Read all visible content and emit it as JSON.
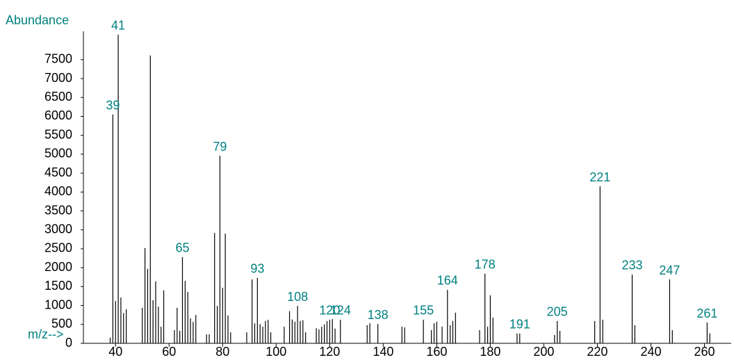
{
  "chart_data": {
    "type": "bar",
    "y_label": "Abundance",
    "x_label": "m/z-->",
    "x": [
      38,
      39,
      40,
      41,
      42,
      43,
      44,
      50,
      51,
      52,
      53,
      54,
      55,
      56,
      57,
      58,
      62,
      63,
      64,
      65,
      66,
      67,
      68,
      69,
      70,
      74,
      75,
      77,
      78,
      79,
      80,
      81,
      82,
      83,
      89,
      91,
      92,
      93,
      94,
      95,
      96,
      97,
      98,
      103,
      105,
      106,
      107,
      108,
      109,
      110,
      111,
      115,
      116,
      117,
      118,
      119,
      120,
      121,
      122,
      124,
      134,
      135,
      138,
      147,
      148,
      155,
      158,
      159,
      160,
      162,
      164,
      165,
      166,
      167,
      176,
      178,
      179,
      180,
      181,
      190,
      191,
      204,
      205,
      206,
      219,
      221,
      222,
      233,
      234,
      247,
      248,
      261,
      262
    ],
    "values": [
      150,
      6050,
      1120,
      8160,
      1210,
      800,
      900,
      940,
      2520,
      1970,
      7610,
      1140,
      1640,
      970,
      440,
      1400,
      350,
      940,
      330,
      2280,
      1650,
      1360,
      660,
      570,
      750,
      240,
      240,
      2920,
      990,
      4960,
      1470,
      2900,
      735,
      290,
      290,
      1690,
      530,
      1730,
      510,
      440,
      590,
      620,
      290,
      440,
      850,
      630,
      570,
      990,
      590,
      610,
      290,
      400,
      370,
      440,
      500,
      590,
      625,
      640,
      390,
      625,
      480,
      530,
      510,
      440,
      420,
      625,
      350,
      530,
      570,
      440,
      1415,
      480,
      590,
      810,
      350,
      1840,
      440,
      1270,
      680,
      260,
      260,
      220,
      590,
      330,
      590,
      4150,
      625,
      1820,
      480,
      1690,
      350,
      550,
      260
    ],
    "color": "#000000",
    "peak_labels": [
      41,
      39,
      65,
      79,
      93,
      108,
      120,
      124,
      138,
      155,
      164,
      178,
      191,
      205,
      221,
      233,
      247,
      261
    ],
    "xlim": [
      28,
      270
    ],
    "xticks": [
      40,
      60,
      80,
      100,
      120,
      140,
      160,
      180,
      200,
      220,
      240,
      260
    ],
    "ylim": [
      0,
      8250
    ],
    "yticks": [
      0,
      500,
      1000,
      1500,
      2000,
      2500,
      3000,
      3500,
      4000,
      4500,
      5000,
      5500,
      6000,
      6500,
      7000,
      7500
    ]
  }
}
